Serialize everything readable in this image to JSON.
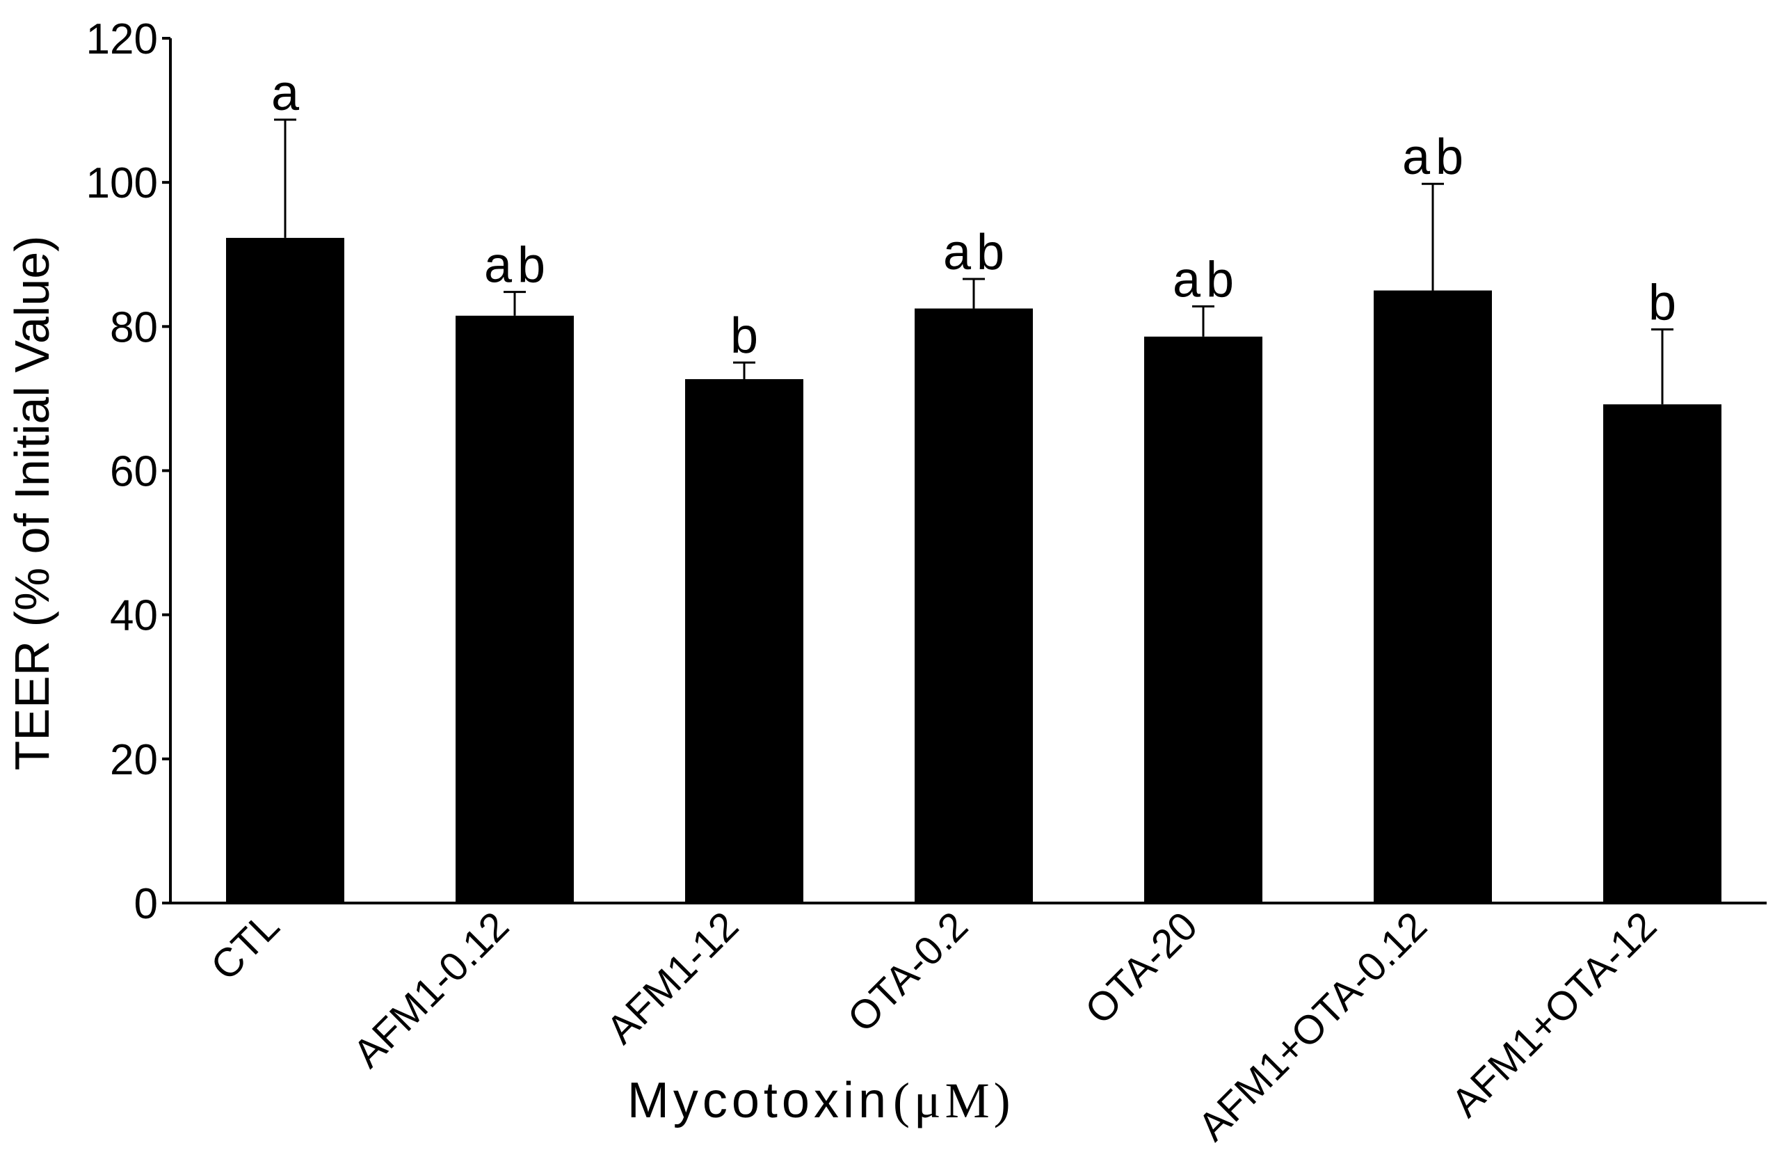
{
  "chart_data": {
    "type": "bar",
    "title": "",
    "xlabel": "Mycotoxin",
    "xlabel_unit": "(μM)",
    "ylabel": "TEER (% of Initial Value)",
    "ylim": [
      0,
      120
    ],
    "yticks": [
      0,
      20,
      40,
      60,
      80,
      100,
      120
    ],
    "ytick_labels": [
      "0",
      "20",
      "40",
      "60",
      "80",
      "100",
      "120"
    ],
    "grid": false,
    "legend": "none",
    "bar_color": "#000000",
    "categories": [
      "CTL",
      "AFM1-0.12",
      "AFM1-12",
      "OTA-0.2",
      "OTA-20",
      "AFM1+OTA-0.12",
      "AFM1+OTA-12"
    ],
    "values": [
      92.3,
      81.5,
      72.7,
      82.5,
      78.6,
      85.0,
      69.2
    ],
    "error_upper": [
      108.7,
      84.8,
      75.0,
      86.6,
      82.8,
      99.8,
      79.6
    ],
    "significance_labels": [
      "a",
      "ab",
      "b",
      "ab",
      "ab",
      "ab",
      "b"
    ]
  }
}
